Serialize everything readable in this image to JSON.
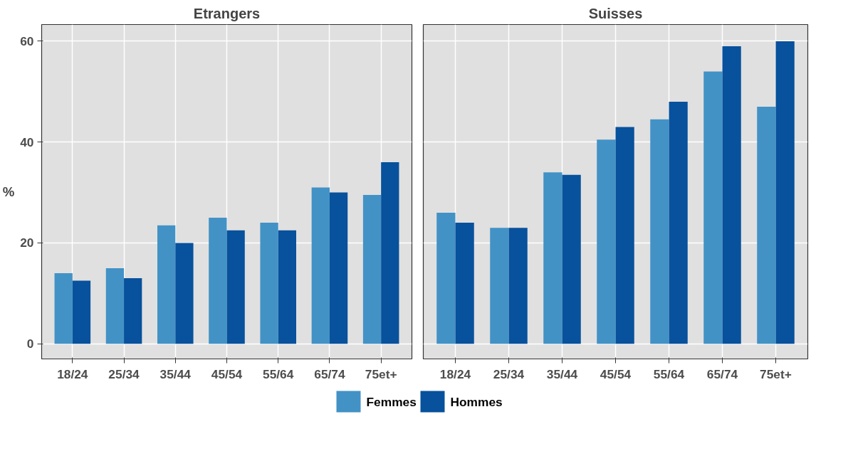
{
  "chart_data": [
    {
      "type": "bar",
      "title": "Etrangers",
      "ylabel": "%",
      "categories": [
        "18/24",
        "25/34",
        "35/44",
        "45/54",
        "55/64",
        "65/74",
        "75et+"
      ],
      "series": [
        {
          "name": "Femmes",
          "color": "#4292c6",
          "values": [
            14,
            15,
            23.5,
            25,
            24,
            31,
            29.5
          ]
        },
        {
          "name": "Hommes",
          "color": "#08519c",
          "values": [
            12.5,
            13,
            20,
            22.5,
            22.5,
            30,
            36
          ]
        }
      ],
      "ylim": [
        -3.0,
        63.3
      ],
      "yticks": [
        0,
        20,
        40,
        60
      ],
      "grid": true,
      "legend": "bottom"
    },
    {
      "type": "bar",
      "title": "Suisses",
      "categories": [
        "18/24",
        "25/34",
        "35/44",
        "45/54",
        "55/64",
        "65/74",
        "75et+"
      ],
      "series": [
        {
          "name": "Femmes",
          "color": "#4292c6",
          "values": [
            26,
            23,
            34,
            40.5,
            44.5,
            54,
            47
          ]
        },
        {
          "name": "Hommes",
          "color": "#08519c",
          "values": [
            24,
            23,
            33.5,
            43,
            48,
            59,
            60
          ]
        }
      ],
      "ylim": [
        -3.0,
        63.3
      ],
      "yticks": [
        0,
        20,
        40,
        60
      ],
      "grid": true,
      "tick_labels": "x"
    }
  ]
}
